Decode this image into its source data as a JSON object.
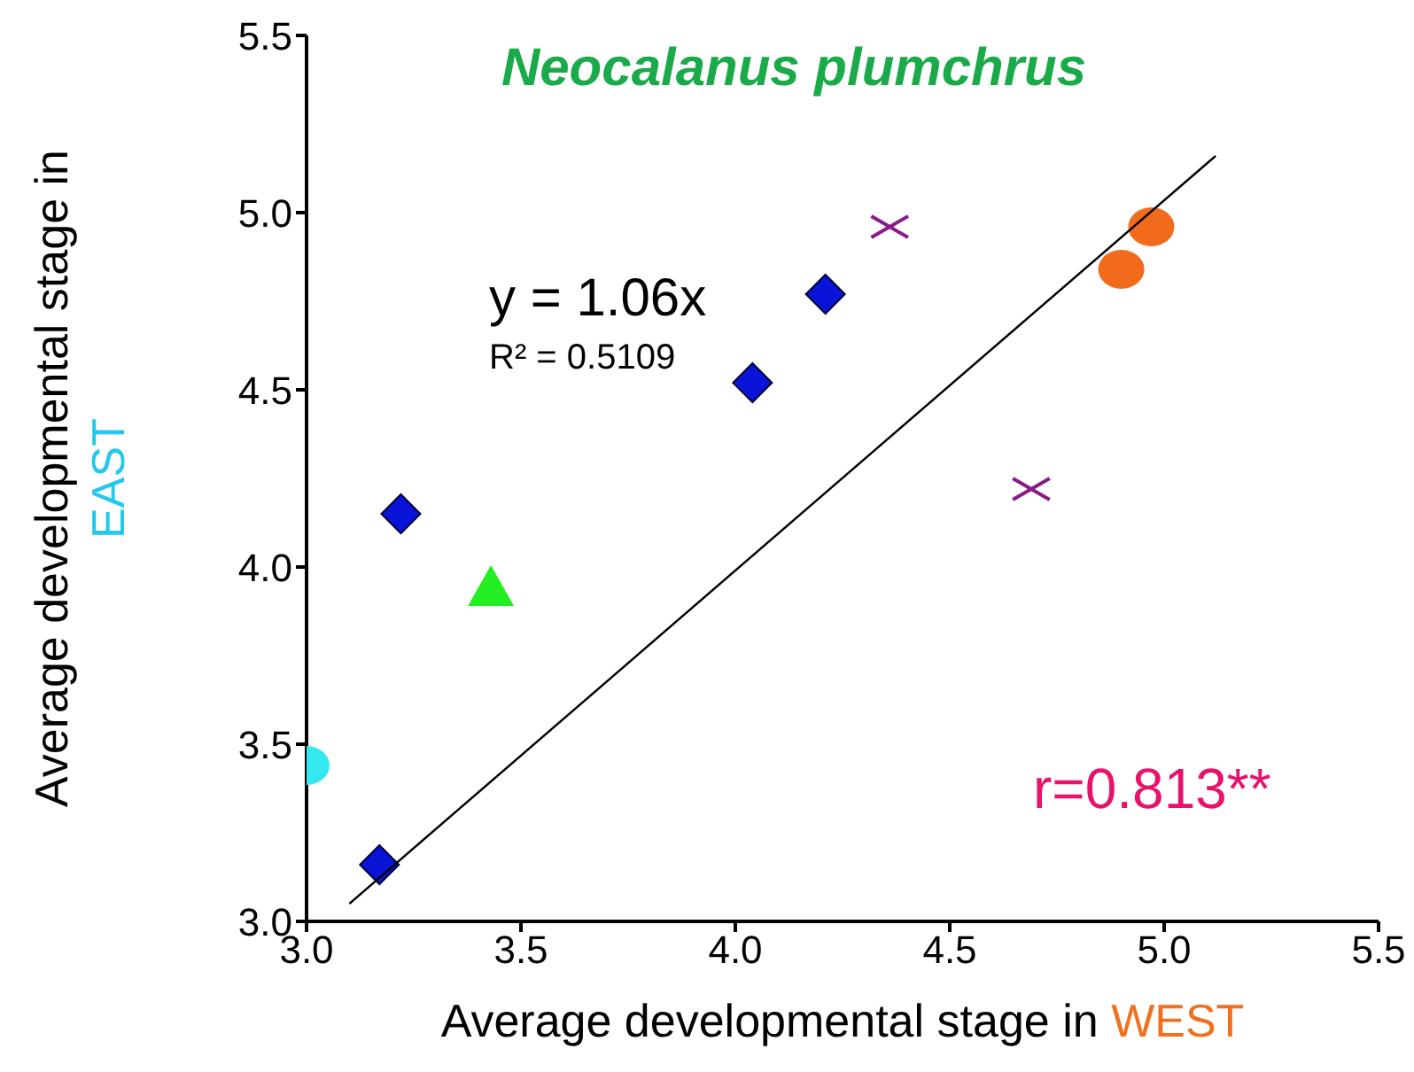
{
  "chart_data": {
    "type": "scatter",
    "title": "Neocalanus plumchrus",
    "xlabel": "Average developmental stage in WEST",
    "ylabel": "Average developmental stage in EAST",
    "xlim": [
      3,
      5.5
    ],
    "xticks": [
      {
        "value": 3,
        "label": "3.0"
      },
      {
        "value": 3.5,
        "label": "3.5"
      },
      {
        "value": 4,
        "label": "4.0"
      },
      {
        "value": 4.5,
        "label": "4.5"
      },
      {
        "value": 5,
        "label": "5.0"
      },
      {
        "value": 5.5,
        "label": "5.5"
      }
    ],
    "ylim": [
      3,
      5.5
    ],
    "yticks": [
      {
        "value": 3,
        "label": "3.0"
      },
      {
        "value": 3.5,
        "label": "3.5"
      },
      {
        "value": 4,
        "label": "4.0"
      },
      {
        "value": 4.5,
        "label": "4.5"
      },
      {
        "value": 5,
        "label": "5.0"
      },
      {
        "value": 5.5,
        "label": "5.5"
      }
    ],
    "grid": false,
    "legend": false,
    "series": [
      {
        "marker": "circle",
        "color": "#33e8ee",
        "x": [
          3.0
        ],
        "values": [
          3.44
        ]
      },
      {
        "marker": "diamond",
        "color": "#0a14d8",
        "x": [
          3.17,
          3.22,
          4.04,
          4.21
        ],
        "values": [
          3.16,
          4.15,
          4.52,
          4.77
        ]
      },
      {
        "marker": "triangle",
        "color": "#22ee22",
        "x": [
          3.43
        ],
        "values": [
          3.94
        ]
      },
      {
        "marker": "cross",
        "color": "#8a1a8a",
        "x": [
          4.36,
          4.69
        ],
        "values": [
          4.96,
          4.22
        ]
      },
      {
        "marker": "circle",
        "color": "#f26b1d",
        "x": [
          4.9,
          4.97
        ],
        "values": [
          4.84,
          4.96
        ]
      },
      {
        "type": "line",
        "marker": "none",
        "color": "#000000",
        "x": [
          3.1,
          5.12
        ],
        "values": [
          3.05,
          5.16
        ]
      }
    ],
    "annotations": [
      "y = 1.06x",
      "R² = 0.5109",
      "r=0.813**"
    ]
  }
}
